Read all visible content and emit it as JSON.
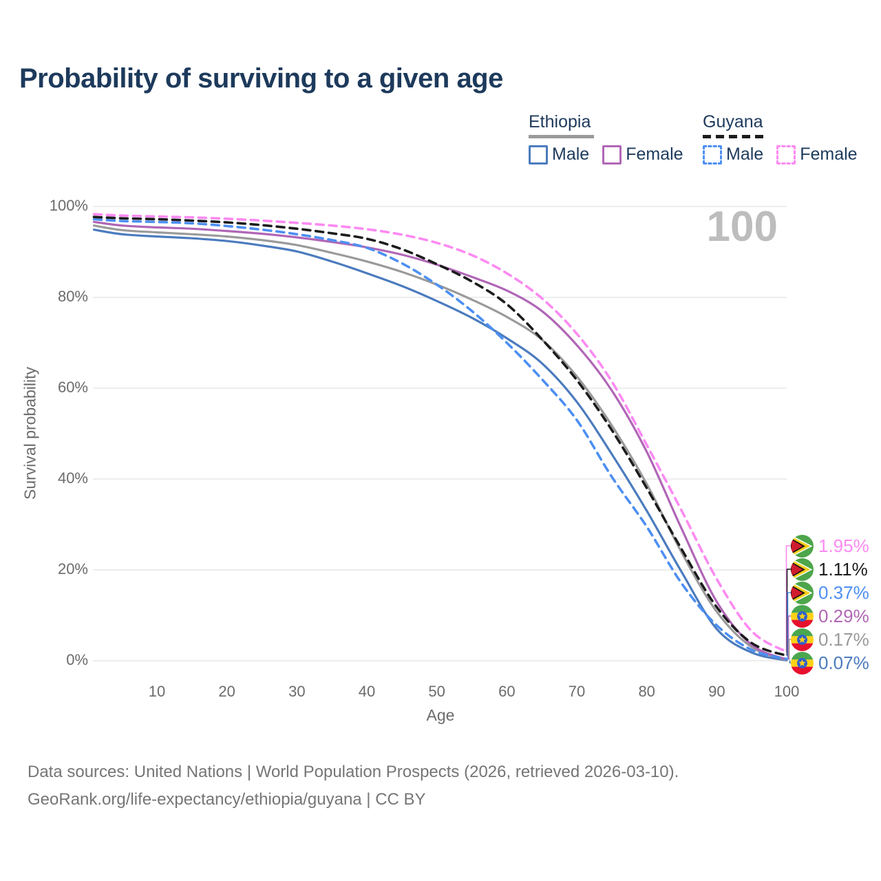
{
  "title": "Probability of surviving to a given age",
  "watermark": "100",
  "legend": {
    "groups": [
      {
        "name": "Ethiopia",
        "dashed": false,
        "line_color": "#9a9a9a",
        "items": [
          {
            "label": "Male",
            "color": "#4b7bbe"
          },
          {
            "label": "Female",
            "color": "#b066b6"
          }
        ]
      },
      {
        "name": "Guyana",
        "dashed": true,
        "line_color": "#1c1c1c",
        "items": [
          {
            "label": "Male",
            "color": "#4d8ff2"
          },
          {
            "label": "Female",
            "color": "#fc8af2"
          }
        ]
      }
    ]
  },
  "axes": {
    "x": {
      "label": "Age",
      "ticks": [
        "10",
        "20",
        "30",
        "40",
        "50",
        "60",
        "70",
        "80",
        "90",
        "100"
      ]
    },
    "y": {
      "label": "Survival probability",
      "ticks": [
        "100%",
        "80%",
        "60%",
        "40%",
        "20%",
        "0%"
      ],
      "tick_values": [
        100,
        80,
        60,
        40,
        20,
        0
      ]
    }
  },
  "end_labels": [
    {
      "text": "1.95%",
      "series": "Guyana Female",
      "flag": "guyana"
    },
    {
      "text": "1.11%",
      "series": "Guyana Both sexes",
      "flag": "guyana"
    },
    {
      "text": "0.37%",
      "series": "Guyana Male",
      "flag": "guyana"
    },
    {
      "text": "0.29%",
      "series": "Ethiopia Female",
      "flag": "ethiopia"
    },
    {
      "text": "0.17%",
      "series": "Ethiopia Both sexes",
      "flag": "ethiopia"
    },
    {
      "text": "0.07%",
      "series": "Ethiopia Male",
      "flag": "ethiopia"
    }
  ],
  "source": {
    "line1": "Data sources: United Nations | World Population Prospects (2026, retrieved 2026-03-10).",
    "line2": "GeoRank.org/life-expectancy/ethiopia/guyana | CC BY"
  },
  "flag_colors": {
    "guyana": {
      "green": "#4da64b",
      "yellow": "#f5cf1b",
      "red": "#d01c2f",
      "border": "#111111",
      "white": "#ffffff"
    },
    "ethiopia": {
      "green": "#4aa64f",
      "yellow": "#fcd116",
      "red": "#e8112d",
      "blue": "#2e5fce"
    }
  },
  "chart_data": {
    "type": "line",
    "title": "Probability of surviving to a given age",
    "xlabel": "Age",
    "ylabel": "Survival probability",
    "xlim": [
      1,
      100
    ],
    "ylim": [
      0,
      100
    ],
    "grid": true,
    "legend_position": "top-right",
    "ages": [
      1,
      5,
      10,
      15,
      20,
      25,
      30,
      35,
      40,
      45,
      50,
      55,
      60,
      65,
      70,
      75,
      80,
      85,
      90,
      95,
      100
    ],
    "series": [
      {
        "name": "Ethiopia Male",
        "country": "Ethiopia",
        "sex": "Male",
        "color": "#4b7bbe",
        "dashed": false,
        "end_label": "0.07%",
        "values": [
          94.9,
          93.9,
          93.4,
          93.0,
          92.4,
          91.4,
          90.1,
          87.9,
          85.3,
          82.5,
          79.2,
          75.5,
          71.0,
          65.5,
          57.0,
          45.5,
          33.0,
          19.5,
          7.0,
          1.8,
          0.07
        ]
      },
      {
        "name": "Ethiopia Both sexes",
        "country": "Ethiopia",
        "sex": "Both sexes",
        "color": "#9a9a9a",
        "dashed": false,
        "end_label": "0.17%",
        "values": [
          95.8,
          94.8,
          94.3,
          93.9,
          93.4,
          92.6,
          91.5,
          89.8,
          87.9,
          85.6,
          82.8,
          79.5,
          75.7,
          70.7,
          62.6,
          51.8,
          38.9,
          23.8,
          10.8,
          3.0,
          0.17
        ]
      },
      {
        "name": "Ethiopia Female",
        "country": "Ethiopia",
        "sex": "Female",
        "color": "#b066b6",
        "dashed": false,
        "end_label": "0.29%",
        "values": [
          96.6,
          95.8,
          95.4,
          95.1,
          94.6,
          94.0,
          93.2,
          92.2,
          91.0,
          89.4,
          87.2,
          84.5,
          81.5,
          77.0,
          69.5,
          59.5,
          46.0,
          29.0,
          13.0,
          3.5,
          0.29
        ]
      },
      {
        "name": "Guyana Male",
        "country": "Guyana",
        "sex": "Male",
        "color": "#4d8ff2",
        "dashed": true,
        "end_label": "0.37%",
        "values": [
          97.2,
          96.8,
          96.6,
          96.3,
          95.7,
          94.9,
          93.9,
          92.6,
          90.9,
          87.5,
          82.8,
          77.0,
          70.0,
          62.0,
          53.0,
          40.5,
          29.5,
          17.0,
          7.8,
          2.4,
          0.37
        ]
      },
      {
        "name": "Guyana Both sexes",
        "country": "Guyana",
        "sex": "Both sexes",
        "color": "#1c1c1c",
        "dashed": true,
        "end_label": "1.11%",
        "values": [
          97.7,
          97.4,
          97.2,
          96.9,
          96.5,
          95.9,
          95.1,
          94.1,
          92.9,
          90.6,
          87.3,
          83.5,
          78.5,
          70.8,
          61.8,
          50.8,
          38.0,
          24.5,
          11.8,
          3.9,
          1.11
        ]
      },
      {
        "name": "Guyana Female",
        "country": "Guyana",
        "sex": "Female",
        "color": "#fc8af2",
        "dashed": true,
        "end_label": "1.95%",
        "values": [
          98.3,
          98.0,
          97.8,
          97.6,
          97.3,
          96.9,
          96.4,
          95.8,
          95.0,
          93.8,
          92.0,
          89.3,
          85.3,
          79.8,
          72.0,
          61.5,
          47.5,
          33.0,
          18.0,
          6.5,
          1.95
        ]
      }
    ]
  }
}
